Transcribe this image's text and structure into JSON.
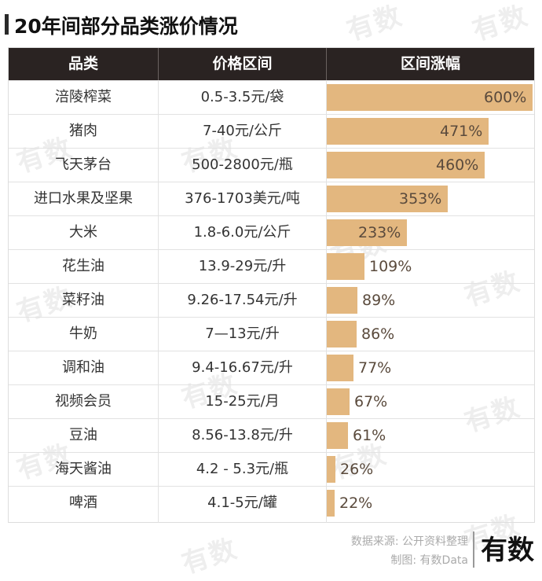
{
  "title": "20年间部分品类涨价情况",
  "watermark": "有数",
  "table": {
    "headers": [
      "品类",
      "价格区间",
      "区间涨幅"
    ]
  },
  "chart_data": {
    "type": "bar",
    "orientation": "horizontal",
    "title": "20年间部分品类涨价情况",
    "value_unit": "%",
    "xlim": [
      0,
      600
    ],
    "categories": [
      "涪陵榨菜",
      "猪肉",
      "飞天茅台",
      "进口水果及坚果",
      "大米",
      "花生油",
      "菜籽油",
      "牛奶",
      "调和油",
      "视频会员",
      "豆油",
      "海天酱油",
      "啤酒"
    ],
    "price_ranges": [
      "0.5-3.5元/袋",
      "7-40元/公斤",
      "500-2800元/瓶",
      "376-1703美元/吨",
      "1.8-6.0元/公斤",
      "13.9-29元/升",
      "9.26-17.54元/升",
      "7—13元/升",
      "9.4-16.67元/升",
      "15-25元/月",
      "8.56-13.8元/升",
      "4.2 - 5.3元/瓶",
      "4.1-5元/罐"
    ],
    "values": [
      600,
      471,
      460,
      353,
      233,
      109,
      89,
      86,
      77,
      67,
      61,
      26,
      22
    ],
    "labels": [
      "600%",
      "471%",
      "460%",
      "353%",
      "233%",
      "109%",
      "89%",
      "86%",
      "77%",
      "67%",
      "61%",
      "26%",
      "22%"
    ],
    "bar_color": "#e3b77f"
  },
  "footer": {
    "source": "数据来源: 公开资料整理",
    "credit": "制图: 有数Data",
    "logo": "有数"
  }
}
